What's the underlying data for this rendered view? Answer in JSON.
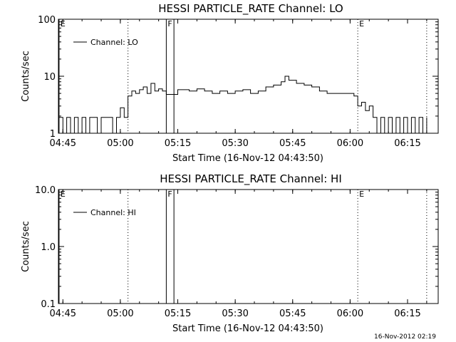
{
  "footer_timestamp": "16-Nov-2012 02:19",
  "chart_data": [
    {
      "type": "line",
      "title": "HESSI PARTICLE_RATE Channel: LO",
      "xlabel": "Start Time (16-Nov-12 04:43:50)",
      "ylabel": "Counts/sec",
      "y_scale": "log",
      "ylim": [
        1,
        100
      ],
      "y_tick_labels": [
        "1",
        "10",
        "100"
      ],
      "x_range_minutes": [
        "04:43:50",
        "06:23:00"
      ],
      "x_tick_labels": [
        "04:45",
        "05:00",
        "05:15",
        "05:30",
        "05:45",
        "06:00",
        "06:15"
      ],
      "legend": {
        "position": "top-left",
        "label": "Channel: LO"
      },
      "markers": [
        {
          "label": "E",
          "time": "04:44",
          "style": "solid"
        },
        {
          "label": "",
          "time": "05:02",
          "style": "dotted"
        },
        {
          "label": "F",
          "time": "05:12",
          "style": "solid"
        },
        {
          "label": "",
          "time": "05:14",
          "style": "solid"
        },
        {
          "label": "E",
          "time": "06:02",
          "style": "dotted"
        },
        {
          "label": "",
          "time": "06:20",
          "style": "dotted"
        }
      ],
      "series": [
        {
          "x": [
            "04:44",
            "04:45",
            "04:46",
            "04:47",
            "04:48",
            "04:49",
            "04:50",
            "04:51",
            "04:52",
            "04:53",
            "04:54",
            "04:55",
            "04:56",
            "04:57",
            "04:58",
            "04:59",
            "05:00",
            "05:01",
            "05:02",
            "05:03",
            "05:04",
            "05:05",
            "05:06",
            "05:07",
            "05:08",
            "05:09",
            "05:10",
            "05:11",
            "05:12",
            "05:15",
            "05:18",
            "05:20",
            "05:22",
            "05:24",
            "05:26",
            "05:28",
            "05:30",
            "05:32",
            "05:34",
            "05:36",
            "05:38",
            "05:40",
            "05:42",
            "05:43",
            "05:44",
            "05:46",
            "05:48",
            "05:50",
            "05:52",
            "05:54",
            "05:56",
            "05:58",
            "06:00",
            "06:01",
            "06:02",
            "06:03",
            "06:04",
            "06:05",
            "06:06",
            "06:07",
            "06:08",
            "06:09",
            "06:10",
            "06:11",
            "06:12",
            "06:13",
            "06:14",
            "06:15",
            "06:16",
            "06:17",
            "06:18",
            "06:19",
            "06:20"
          ],
          "values": [
            1.9,
            1.0,
            1.9,
            1.0,
            1.9,
            1.0,
            1.9,
            1.0,
            1.9,
            1.9,
            1.0,
            1.9,
            1.9,
            1.9,
            1.0,
            1.9,
            2.8,
            1.9,
            4.5,
            5.5,
            5.0,
            5.8,
            6.5,
            5.0,
            7.5,
            5.5,
            6.0,
            5.5,
            4.8,
            5.8,
            5.5,
            6.0,
            5.5,
            5.0,
            5.5,
            5.0,
            5.5,
            5.8,
            5.0,
            5.5,
            6.5,
            7.0,
            8.0,
            10.0,
            8.5,
            7.5,
            7.0,
            6.5,
            5.5,
            5.0,
            5.0,
            5.0,
            5.0,
            4.5,
            3.0,
            3.5,
            2.5,
            3.0,
            1.9,
            1.0,
            1.9,
            1.0,
            1.9,
            1.0,
            1.9,
            1.0,
            1.9,
            1.0,
            1.9,
            1.0,
            1.9,
            1.0,
            1.9
          ]
        }
      ]
    },
    {
      "type": "line",
      "title": "HESSI PARTICLE_RATE Channel: HI",
      "xlabel": "Start Time (16-Nov-12 04:43:50)",
      "ylabel": "Counts/sec",
      "y_scale": "log",
      "ylim": [
        0.1,
        10.0
      ],
      "y_tick_labels": [
        "0.1",
        "1.0",
        "10.0"
      ],
      "x_range_minutes": [
        "04:43:50",
        "06:23:00"
      ],
      "x_tick_labels": [
        "04:45",
        "05:00",
        "05:15",
        "05:30",
        "05:45",
        "06:00",
        "06:15"
      ],
      "legend": {
        "position": "top-left",
        "label": "Channel: HI"
      },
      "markers": [
        {
          "label": "E",
          "time": "04:44",
          "style": "solid"
        },
        {
          "label": "",
          "time": "05:02",
          "style": "dotted"
        },
        {
          "label": "F",
          "time": "05:12",
          "style": "solid"
        },
        {
          "label": "",
          "time": "05:14",
          "style": "solid"
        },
        {
          "label": "E",
          "time": "06:02",
          "style": "dotted"
        },
        {
          "label": "",
          "time": "06:20",
          "style": "dotted"
        }
      ],
      "series": [
        {
          "x": [],
          "values": []
        }
      ]
    }
  ]
}
